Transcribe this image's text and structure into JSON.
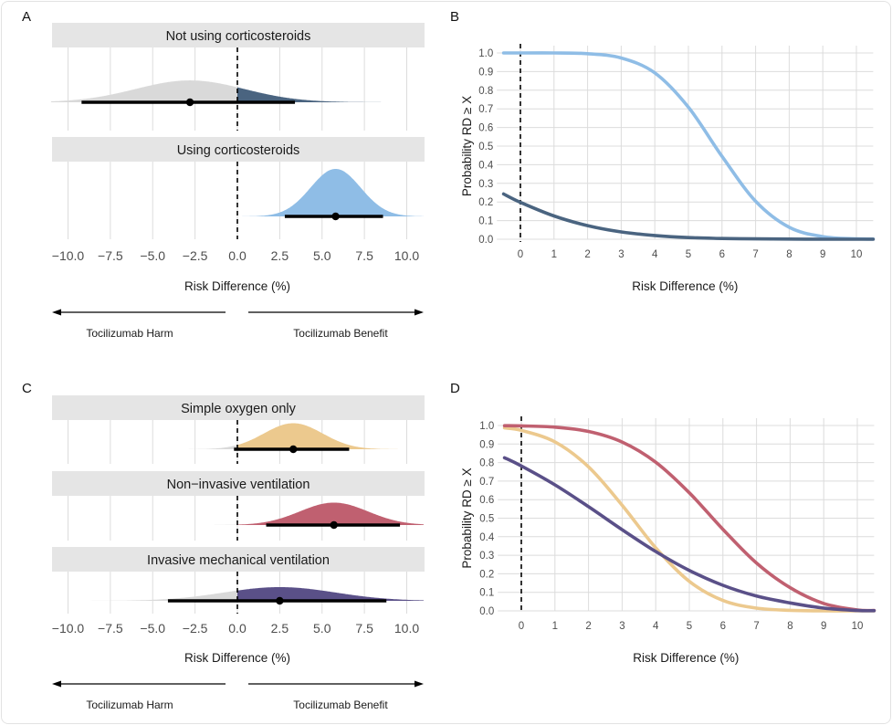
{
  "chart_data": [
    {
      "panel": "A",
      "type": "density-interval",
      "xlabel": "Risk Difference (%)",
      "xlim": [
        -11,
        11
      ],
      "xticks": [
        -10,
        -7.5,
        -5,
        -2.5,
        0,
        2.5,
        5,
        7.5,
        10
      ],
      "xtick_labels": [
        "−10.0",
        "−7.5",
        "−5.0",
        "−2.5",
        "0.0",
        "2.5",
        "5.0",
        "7.5",
        "10.0"
      ],
      "reference_line": 0,
      "harm_label": "Tocilizumab Harm",
      "benefit_label": "Tocilizumab Benefit",
      "facets": [
        {
          "label": "Not using corticosteroids",
          "point": -2.8,
          "interval": [
            -9.2,
            3.4
          ],
          "color": "#4a6480",
          "below_zero_color": "#d9d9d9"
        },
        {
          "label": "Using corticosteroids",
          "point": 5.8,
          "interval": [
            2.8,
            8.6
          ],
          "color": "#8fbde6",
          "below_zero_color": "#8fbde6"
        }
      ]
    },
    {
      "panel": "B",
      "type": "line",
      "xlabel": "Risk Difference (%)",
      "ylabel": "Probability RD ≥ X",
      "xlim": [
        -0.7,
        10.5
      ],
      "ylim": [
        0,
        1
      ],
      "xticks": [
        0,
        1,
        2,
        3,
        4,
        5,
        6,
        7,
        8,
        9,
        10
      ],
      "yticks": [
        0.0,
        0.1,
        0.2,
        0.3,
        0.4,
        0.5,
        0.6,
        0.7,
        0.8,
        0.9,
        1.0
      ],
      "grid": true,
      "reference_line": 0,
      "x": [
        -0.5,
        0,
        1,
        2,
        3,
        4,
        5,
        6,
        7,
        8,
        9,
        10,
        10.5
      ],
      "series": [
        {
          "color": "#8fbde6",
          "values": [
            1.0,
            1.0,
            1.0,
            0.996,
            0.973,
            0.893,
            0.709,
            0.445,
            0.204,
            0.064,
            0.014,
            0.002,
            0.001
          ]
        },
        {
          "color": "#4a6480",
          "values": [
            0.243,
            0.198,
            0.125,
            0.073,
            0.039,
            0.02,
            0.009,
            0.004,
            0.002,
            0.001,
            0.0,
            0.0,
            0.0
          ]
        }
      ]
    },
    {
      "panel": "C",
      "type": "density-interval",
      "xlabel": "Risk Difference (%)",
      "xlim": [
        -11,
        11
      ],
      "xticks": [
        -10,
        -7.5,
        -5,
        -2.5,
        0,
        2.5,
        5,
        7.5,
        10
      ],
      "xtick_labels": [
        "−10.0",
        "−7.5",
        "−5.0",
        "−2.5",
        "0.0",
        "2.5",
        "5.0",
        "7.5",
        "10.0"
      ],
      "reference_line": 0,
      "harm_label": "Tocilizumab Harm",
      "benefit_label": "Tocilizumab Benefit",
      "facets": [
        {
          "label": "Simple oxygen only",
          "point": 3.3,
          "interval": [
            -0.2,
            6.6
          ],
          "color": "#ecc98e",
          "below_zero_color": "#d9d9d9"
        },
        {
          "label": "Non−invasive ventilation",
          "point": 5.7,
          "interval": [
            1.7,
            9.6
          ],
          "color": "#c06070",
          "below_zero_color": "#d9d9d9"
        },
        {
          "label": "Invasive mechanical ventilation",
          "point": 2.5,
          "interval": [
            -4.1,
            8.8
          ],
          "color": "#5a5088",
          "below_zero_color": "#d9d9d9"
        }
      ]
    },
    {
      "panel": "D",
      "type": "line",
      "xlabel": "Risk Difference (%)",
      "ylabel": "Probability RD ≥ X",
      "xlim": [
        -0.7,
        10.5
      ],
      "ylim": [
        0,
        1
      ],
      "xticks": [
        0,
        1,
        2,
        3,
        4,
        5,
        6,
        7,
        8,
        9,
        10
      ],
      "yticks": [
        0.0,
        0.1,
        0.2,
        0.3,
        0.4,
        0.5,
        0.6,
        0.7,
        0.8,
        0.9,
        1.0
      ],
      "grid": true,
      "reference_line": 0,
      "x": [
        -0.5,
        0,
        1,
        2,
        3,
        4,
        5,
        6,
        7,
        8,
        9,
        10,
        10.5
      ],
      "series": [
        {
          "color": "#ecc98e",
          "values": [
            0.987,
            0.974,
            0.912,
            0.777,
            0.57,
            0.34,
            0.159,
            0.056,
            0.015,
            0.003,
            0.0,
            0.0,
            0.0
          ]
        },
        {
          "color": "#c06070",
          "values": [
            0.999,
            0.998,
            0.991,
            0.968,
            0.911,
            0.802,
            0.637,
            0.44,
            0.258,
            0.125,
            0.04,
            0.005,
            0.002
          ]
        },
        {
          "color": "#5a5088",
          "values": [
            0.826,
            0.782,
            0.68,
            0.562,
            0.438,
            0.32,
            0.218,
            0.138,
            0.08,
            0.043,
            0.015,
            0.002,
            0.001
          ]
        }
      ]
    }
  ]
}
